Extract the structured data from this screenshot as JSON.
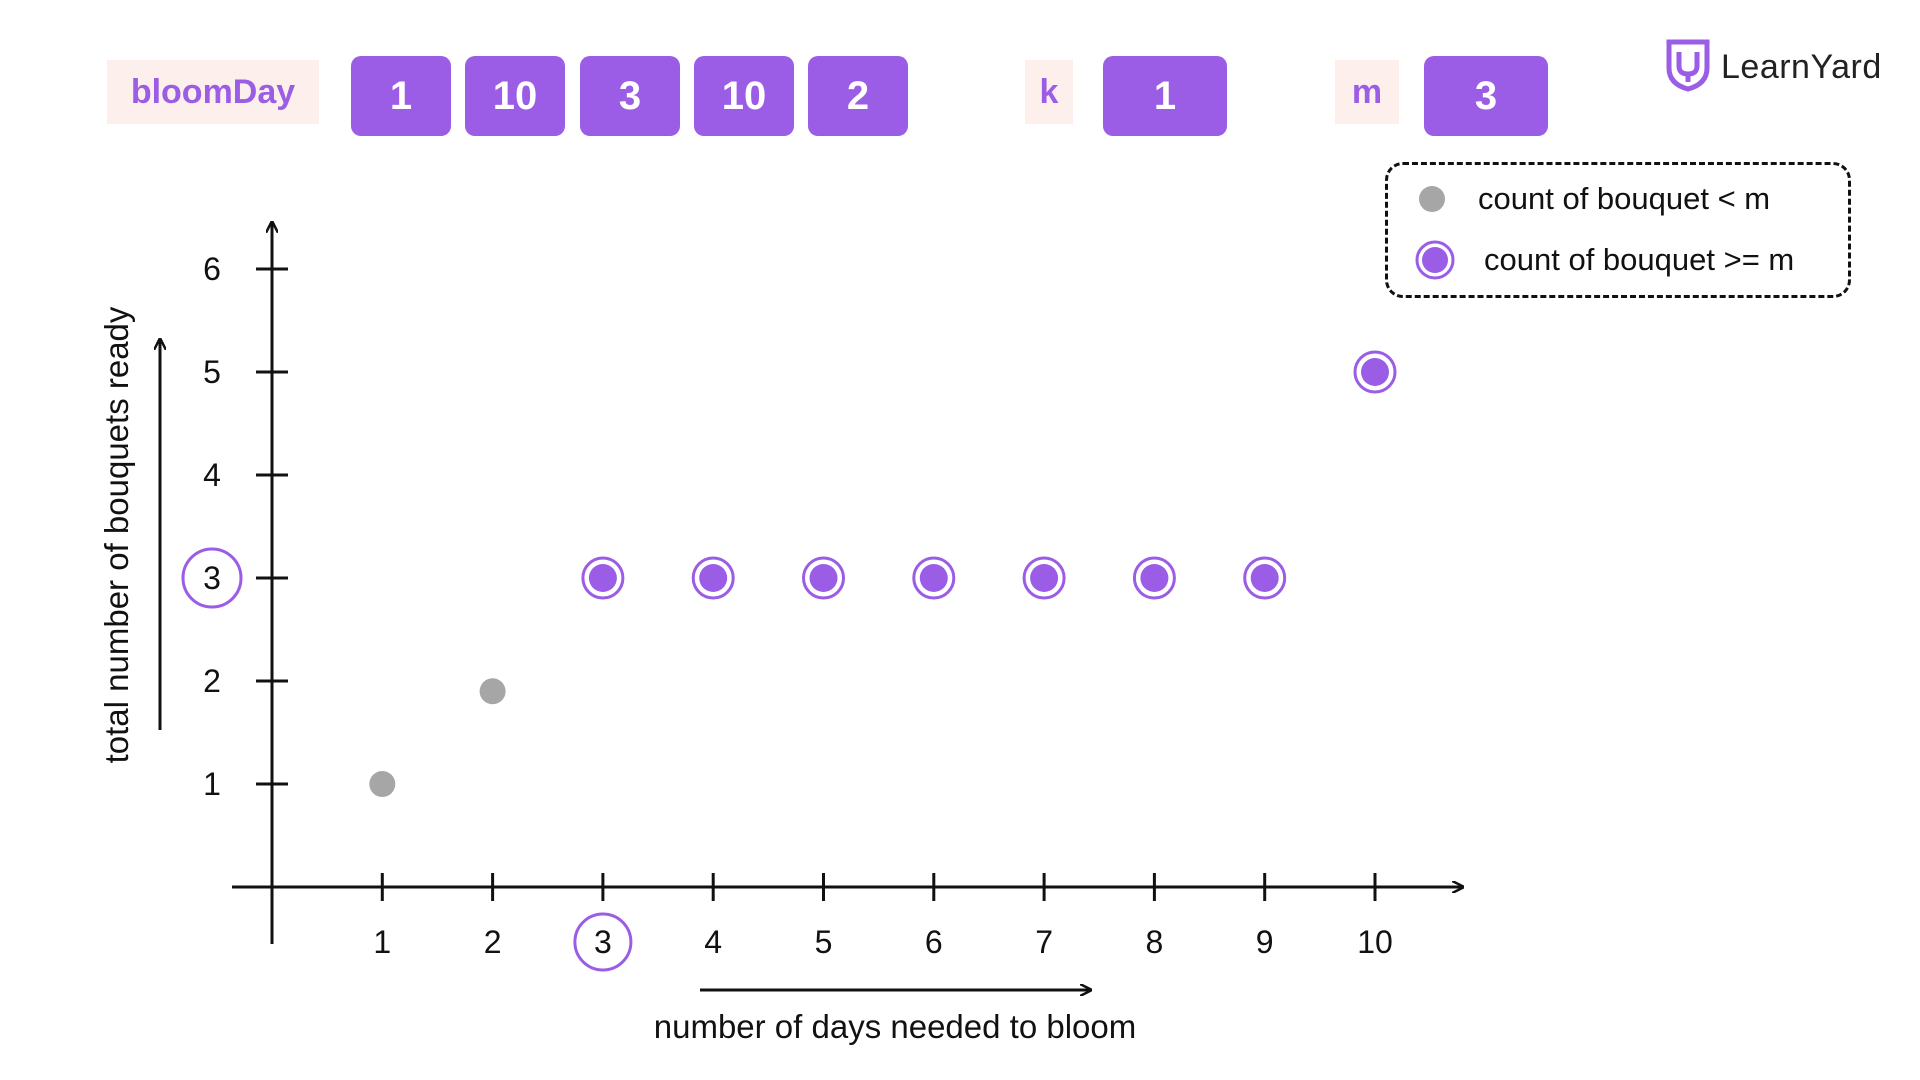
{
  "inputs": {
    "bloom_label": "bloomDay",
    "bloom_values": [
      "1",
      "10",
      "3",
      "10",
      "2"
    ],
    "k_label": "k",
    "k_value": "1",
    "m_label": "m",
    "m_value": "3"
  },
  "brand": {
    "name": "LearnYard",
    "icon": "learnyard-shield-logo-icon"
  },
  "colors": {
    "accent": "#9b5de5",
    "accent_text": "#9b5de5",
    "chip_bg": "#fdf0ec",
    "below_m": "#a6a6a6",
    "axis": "#111111"
  },
  "legend": {
    "items": [
      {
        "label": "count of bouquet < m",
        "marker": "gray-dot"
      },
      {
        "label": "count of bouquet >= m",
        "marker": "purple-ring-dot"
      }
    ]
  },
  "chart_data": {
    "type": "scatter",
    "xlabel": "number of days needed to bloom",
    "ylabel": "total number of bouquets ready",
    "x_ticks": [
      1,
      2,
      3,
      4,
      5,
      6,
      7,
      8,
      9,
      10
    ],
    "y_ticks": [
      1,
      2,
      3,
      4,
      5,
      6
    ],
    "xlim": [
      0,
      10.7
    ],
    "ylim": [
      0,
      6.4
    ],
    "grid": false,
    "legend_position": "top-right",
    "highlight_x": 3,
    "highlight_y": 3,
    "series": [
      {
        "name": "count of bouquet < m",
        "x": [
          1,
          2
        ],
        "y": [
          1,
          1.9
        ]
      },
      {
        "name": "count of bouquet >= m",
        "x": [
          3,
          4,
          5,
          6,
          7,
          8,
          9,
          10
        ],
        "y": [
          3,
          3,
          3,
          3,
          3,
          3,
          3,
          5
        ]
      }
    ]
  }
}
